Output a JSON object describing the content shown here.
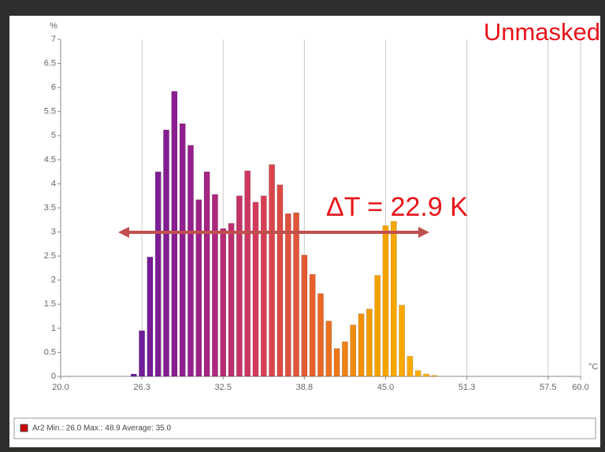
{
  "chart_data": {
    "type": "histogram",
    "ylabel": "%",
    "xlabel": "°C",
    "annotations": [
      "Unmasked",
      "ΔT = 22.9 K"
    ],
    "bins": [
      25.3125,
      25.9375,
      26.5625,
      27.1875,
      27.8125,
      28.4375,
      29.0625,
      29.6875,
      30.3125,
      30.9375,
      31.5625,
      32.1875,
      32.8125,
      33.4375,
      34.0625,
      34.6875,
      35.3125,
      35.9375,
      36.5625,
      37.1875,
      37.8125,
      38.4375,
      39.0625,
      39.6875,
      40.3125,
      40.9375,
      41.5625,
      42.1875,
      42.8125,
      43.4375,
      44.0625,
      44.6875,
      45.3125,
      45.9375,
      46.5625,
      47.1875,
      47.8125,
      48.4375,
      49.0625
    ],
    "series": [
      {
        "name": "Ar2 Min.: 26.0 Max.: 48.9 Average: 35.0",
        "color": "#cc0000",
        "values": [
          0.05,
          0.95,
          2.48,
          4.25,
          5.12,
          5.92,
          5.25,
          4.8,
          3.67,
          4.25,
          3.78,
          3.07,
          3.18,
          3.75,
          4.27,
          3.62,
          3.75,
          4.4,
          3.98,
          3.38,
          3.4,
          2.52,
          2.12,
          1.72,
          1.15,
          0.58,
          0.72,
          1.07,
          1.3,
          1.4,
          2.1,
          3.13,
          3.22,
          1.48,
          0.42,
          0.12,
          0.05,
          0.02
        ]
      }
    ],
    "color_stops": [
      "#6a1b9a",
      "#9a1f8c",
      "#d23a5c",
      "#e8602a",
      "#f5a000",
      "#ffb300"
    ],
    "xlim": [
      20,
      60
    ],
    "xticks": [
      {
        "value": 20,
        "label": "20.0"
      },
      {
        "value": 26.25,
        "label": "26.3"
      },
      32.5,
      {
        "value": 38.75,
        "label": "38.8"
      },
      {
        "value": 45,
        "label": "45.0"
      },
      {
        "value": 51.25,
        "label": "51.3"
      },
      57.5,
      {
        "value": 60,
        "label": "60.0"
      }
    ],
    "ylim": [
      0,
      7
    ],
    "yticks": [
      0,
      0.5,
      1,
      1.5,
      2,
      2.5,
      3,
      3.5,
      4,
      4.5,
      5,
      5.5,
      6,
      6.5,
      7
    ],
    "grid": true
  }
}
